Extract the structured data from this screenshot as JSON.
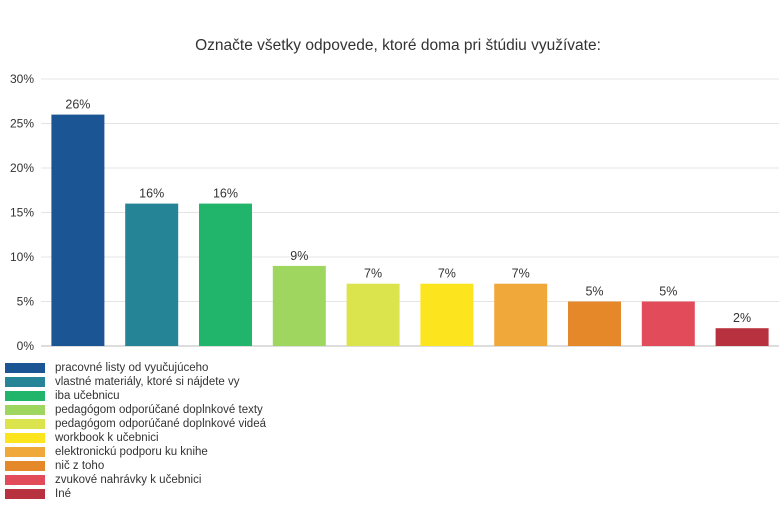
{
  "chart_data": {
    "type": "bar",
    "title": "Označte všetky odpovede, ktoré doma pri štúdiu využívate:",
    "xlabel": "",
    "ylabel": "",
    "ylim": [
      0,
      30
    ],
    "yticks": [
      "0%",
      "5%",
      "10%",
      "15%",
      "20%",
      "25%",
      "30%"
    ],
    "ytick_values": [
      0,
      5,
      10,
      15,
      20,
      25,
      30
    ],
    "grid": true,
    "legend_position": "bottom",
    "categories": [
      "pracovné listy od vyučujúceho",
      "vlastné materiály, ktoré si nájdete vy",
      "iba učebnicu",
      "pedagógom odporúčané doplnkové texty",
      "pedagógom odporúčané doplnkové videá",
      "workbook k učebnici",
      "elektronickú podporu ku knihe",
      "nič z toho",
      "zvukové nahrávky k učebnici",
      "Iné"
    ],
    "values": [
      26,
      16,
      16,
      9,
      7,
      7,
      7,
      5,
      5,
      2
    ],
    "data_labels": [
      "26%",
      "16%",
      "16%",
      "9%",
      "7%",
      "7%",
      "7%",
      "5%",
      "5%",
      "2%"
    ],
    "colors": [
      "#1b5593",
      "#258496",
      "#21b56b",
      "#9fd660",
      "#dbe44d",
      "#fce41f",
      "#f1a83b",
      "#e5882a",
      "#e24c5a",
      "#b8313f"
    ]
  }
}
